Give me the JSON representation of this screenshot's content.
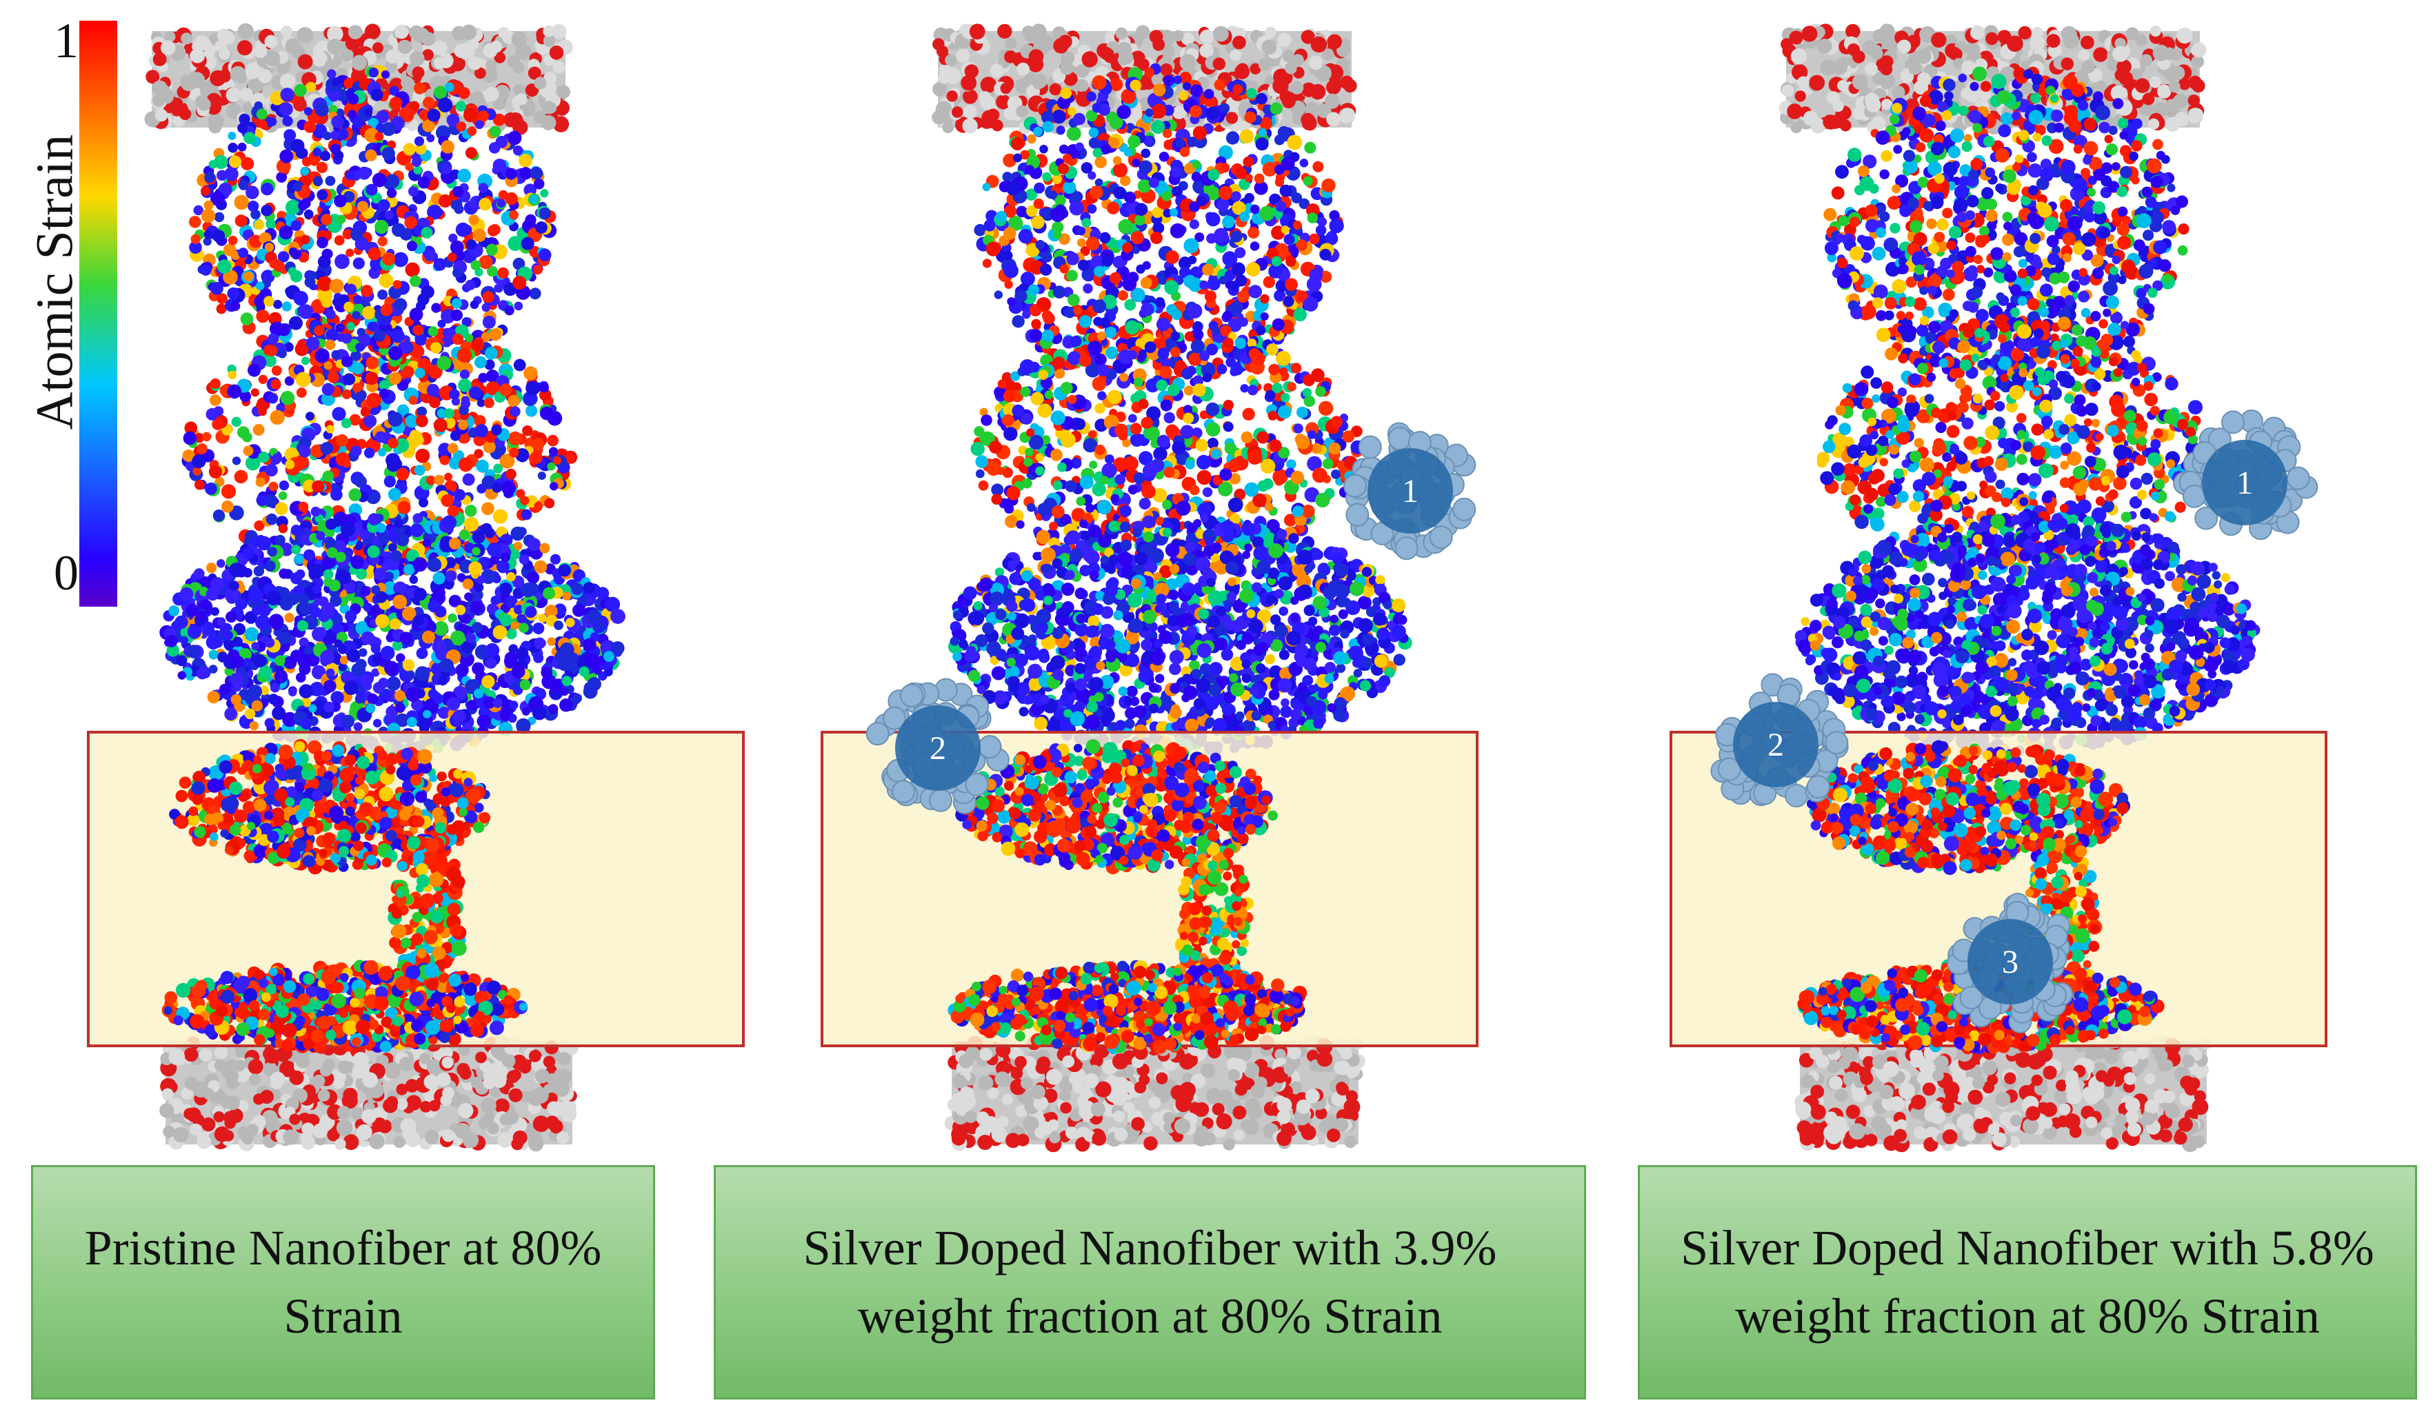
{
  "colorbar": {
    "title": "Atomic Strain",
    "max_label": "1",
    "min_label": "0",
    "gradient_colors": [
      "#ff0000",
      "#ff6a00",
      "#ffd800",
      "#3bd63b",
      "#00c8ff",
      "#1a5cff",
      "#2a00ff",
      "#5a00c8"
    ]
  },
  "panels": [
    {
      "caption": "Pristine Nanofiber at 80% Strain",
      "nanoparticles": []
    },
    {
      "caption": "Silver Doped Nanofiber with 3.9% weight fraction at 80% Strain",
      "nanoparticles": [
        "1",
        "2"
      ]
    },
    {
      "caption": "Silver Doped Nanofiber with 5.8% weight fraction at 80% Strain",
      "nanoparticles": [
        "1",
        "2",
        "3"
      ]
    }
  ],
  "colors": {
    "highlight_fill": "#fbf3cc",
    "highlight_border": "#c0302a",
    "nanoparticle_shell": "#8fb3d4",
    "nanoparticle_core": "#2a6aa8",
    "caption_fill": "#9ccf92",
    "caption_border": "#5faa54"
  }
}
